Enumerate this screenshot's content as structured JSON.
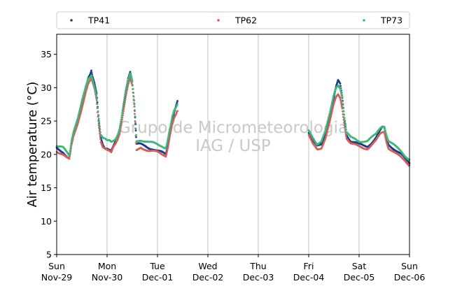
{
  "chart_data": {
    "type": "scatter",
    "ylabel": "Air temperature (°C)",
    "ylim": [
      5,
      38
    ],
    "yticks": [
      5,
      10,
      15,
      20,
      25,
      30,
      35
    ],
    "xlim_hours": [
      0,
      168
    ],
    "x_start": "2020-11-29T00:00",
    "xticks": [
      {
        "h": 0,
        "day": "Sun",
        "date": "Nov-29"
      },
      {
        "h": 24,
        "day": "Mon",
        "date": "Nov-30"
      },
      {
        "h": 48,
        "day": "Tue",
        "date": "Dec-01"
      },
      {
        "h": 72,
        "day": "Wed",
        "date": "Dec-02"
      },
      {
        "h": 96,
        "day": "Thu",
        "date": "Dec-03"
      },
      {
        "h": 120,
        "day": "Fri",
        "date": "Dec-04"
      },
      {
        "h": 144,
        "day": "Sat",
        "date": "Dec-05"
      },
      {
        "h": 168,
        "day": "Sun",
        "date": "Dec-06"
      }
    ],
    "grid": "vertical",
    "legend": "top",
    "watermark": [
      "Grupo de Micrometeorologia",
      "IAG / USP"
    ],
    "series": [
      {
        "name": "TP41",
        "color": "#1f3b8c",
        "segments": [
          {
            "points": [
              [
                0,
                21.0
              ],
              [
                3,
                20.4
              ],
              [
                5,
                19.6
              ],
              [
                6,
                19.3
              ],
              [
                7,
                21.5
              ],
              [
                8,
                23.0
              ],
              [
                10,
                25.0
              ],
              [
                12,
                27.5
              ],
              [
                14,
                30.0
              ],
              [
                15,
                31.5
              ],
              [
                16,
                32.0
              ],
              [
                16.5,
                32.5
              ],
              [
                17,
                31.6
              ],
              [
                18,
                30.5
              ],
              [
                19,
                29.0
              ],
              [
                20,
                25.0
              ],
              [
                21,
                22.5
              ],
              [
                22,
                21.5
              ],
              [
                23,
                21.0
              ],
              [
                24,
                21.0
              ],
              [
                25,
                20.8
              ],
              [
                26,
                20.6
              ],
              [
                27,
                21.2
              ],
              [
                28,
                21.8
              ],
              [
                29,
                22.5
              ],
              [
                30,
                23.5
              ],
              [
                31,
                25.5
              ],
              [
                32,
                27.5
              ],
              [
                33,
                29.5
              ],
              [
                34,
                31.5
              ],
              [
                35,
                32.5
              ],
              [
                36,
                31.0
              ],
              [
                37,
                27.5
              ],
              [
                38,
                21.5
              ],
              [
                40,
                21.5
              ],
              [
                42,
                21.3
              ],
              [
                44,
                21.0
              ],
              [
                46,
                20.8
              ],
              [
                48,
                20.5
              ],
              [
                50,
                20.3
              ],
              [
                52,
                20.0
              ],
              [
                53,
                21.5
              ],
              [
                54,
                23.5
              ],
              [
                55,
                25.0
              ],
              [
                56,
                26.5
              ],
              [
                57,
                27.5
              ],
              [
                57.5,
                28.0
              ]
            ]
          },
          {
            "points": [
              [
                120,
                23.3
              ],
              [
                122,
                22.0
              ],
              [
                124,
                21.2
              ],
              [
                126,
                21.5
              ],
              [
                128,
                23.0
              ],
              [
                130,
                25.5
              ],
              [
                132,
                28.5
              ],
              [
                133,
                30.0
              ],
              [
                134,
                31.0
              ],
              [
                135,
                30.5
              ],
              [
                136,
                28.5
              ],
              [
                137,
                25.5
              ],
              [
                138,
                23.0
              ],
              [
                140,
                22.0
              ],
              [
                142,
                21.8
              ],
              [
                144,
                21.5
              ],
              [
                146,
                21.3
              ],
              [
                148,
                21.2
              ],
              [
                150,
                21.8
              ],
              [
                152,
                22.5
              ],
              [
                153,
                23.0
              ],
              [
                154,
                23.5
              ],
              [
                155,
                24.0
              ],
              [
                156,
                24.0
              ],
              [
                157,
                22.5
              ],
              [
                158,
                21.5
              ],
              [
                160,
                21.0
              ],
              [
                162,
                20.5
              ],
              [
                164,
                20.0
              ],
              [
                166,
                19.3
              ],
              [
                168,
                18.7
              ]
            ]
          }
        ]
      },
      {
        "name": "TP62",
        "color": "#d45f5a",
        "segments": [
          {
            "points": [
              [
                0,
                20.5
              ],
              [
                3,
                20.0
              ],
              [
                5,
                19.4
              ],
              [
                6,
                19.2
              ],
              [
                7,
                21.2
              ],
              [
                8,
                22.7
              ],
              [
                10,
                24.7
              ],
              [
                12,
                27.0
              ],
              [
                14,
                29.5
              ],
              [
                15,
                30.5
              ],
              [
                16,
                31.0
              ],
              [
                16.5,
                31.2
              ],
              [
                17,
                30.8
              ],
              [
                18,
                29.8
              ],
              [
                19,
                28.2
              ],
              [
                20,
                24.5
              ],
              [
                21,
                22.0
              ],
              [
                22,
                21.2
              ],
              [
                23,
                21.0
              ],
              [
                24,
                20.7
              ],
              [
                25,
                20.5
              ],
              [
                26,
                20.2
              ],
              [
                27,
                21.0
              ],
              [
                28,
                21.5
              ],
              [
                29,
                22.2
              ],
              [
                30,
                23.2
              ],
              [
                31,
                25.0
              ],
              [
                32,
                27.0
              ],
              [
                33,
                29.0
              ],
              [
                34,
                30.5
              ],
              [
                35,
                31.5
              ],
              [
                36,
                30.2
              ],
              [
                37,
                27.0
              ],
              [
                38,
                20.5
              ],
              [
                40,
                21.0
              ],
              [
                42,
                20.8
              ],
              [
                44,
                20.6
              ],
              [
                46,
                20.5
              ],
              [
                48,
                20.3
              ],
              [
                50,
                20.0
              ],
              [
                52,
                19.8
              ],
              [
                53,
                21.2
              ],
              [
                54,
                23.0
              ],
              [
                55,
                24.5
              ],
              [
                56,
                25.5
              ],
              [
                57,
                26.0
              ],
              [
                57.5,
                26.5
              ]
            ]
          },
          {
            "points": [
              [
                120,
                22.8
              ],
              [
                122,
                21.5
              ],
              [
                124,
                20.8
              ],
              [
                126,
                21.0
              ],
              [
                128,
                22.5
              ],
              [
                130,
                24.8
              ],
              [
                132,
                27.5
              ],
              [
                133,
                28.5
              ],
              [
                134,
                29.0
              ],
              [
                135,
                28.5
              ],
              [
                136,
                27.0
              ],
              [
                137,
                24.5
              ],
              [
                138,
                22.5
              ],
              [
                140,
                21.6
              ],
              [
                142,
                21.4
              ],
              [
                144,
                21.2
              ],
              [
                146,
                21.0
              ],
              [
                148,
                20.9
              ],
              [
                150,
                21.4
              ],
              [
                152,
                22.0
              ],
              [
                153,
                22.5
              ],
              [
                154,
                23.0
              ],
              [
                155,
                23.3
              ],
              [
                156,
                23.4
              ],
              [
                157,
                22.0
              ],
              [
                158,
                21.0
              ],
              [
                160,
                20.5
              ],
              [
                162,
                20.0
              ],
              [
                164,
                19.5
              ],
              [
                166,
                19.0
              ],
              [
                168,
                18.4
              ]
            ]
          }
        ]
      },
      {
        "name": "TP73",
        "color": "#3cb878",
        "segments": [
          {
            "points": [
              [
                0,
                21.3
              ],
              [
                3,
                21.0
              ],
              [
                5,
                20.2
              ],
              [
                6,
                19.8
              ],
              [
                7,
                22.0
              ],
              [
                8,
                23.5
              ],
              [
                10,
                25.5
              ],
              [
                12,
                28.0
              ],
              [
                14,
                30.2
              ],
              [
                15,
                31.2
              ],
              [
                16,
                31.5
              ],
              [
                16.5,
                31.8
              ],
              [
                17,
                31.3
              ],
              [
                18,
                30.2
              ],
              [
                19,
                28.8
              ],
              [
                20,
                25.5
              ],
              [
                21,
                23.0
              ],
              [
                22,
                22.5
              ],
              [
                23,
                22.3
              ],
              [
                24,
                22.0
              ],
              [
                25,
                22.0
              ],
              [
                26,
                21.8
              ],
              [
                27,
                22.0
              ],
              [
                28,
                22.3
              ],
              [
                29,
                23.0
              ],
              [
                30,
                24.0
              ],
              [
                31,
                26.0
              ],
              [
                32,
                28.0
              ],
              [
                33,
                29.8
              ],
              [
                34,
                31.0
              ],
              [
                35,
                32.0
              ],
              [
                36,
                30.8
              ],
              [
                37,
                27.5
              ],
              [
                38,
                22.0
              ],
              [
                40,
                22.2
              ],
              [
                42,
                22.0
              ],
              [
                44,
                21.8
              ],
              [
                46,
                21.7
              ],
              [
                48,
                21.5
              ],
              [
                50,
                21.3
              ],
              [
                52,
                21.0
              ],
              [
                53,
                22.5
              ],
              [
                54,
                24.0
              ],
              [
                55,
                25.5
              ],
              [
                56,
                26.5
              ],
              [
                57,
                27.0
              ],
              [
                57.5,
                27.5
              ]
            ]
          },
          {
            "points": [
              [
                120,
                23.5
              ],
              [
                122,
                22.5
              ],
              [
                124,
                21.6
              ],
              [
                126,
                22.0
              ],
              [
                128,
                23.5
              ],
              [
                130,
                26.0
              ],
              [
                132,
                29.0
              ],
              [
                133,
                30.0
              ],
              [
                134,
                30.5
              ],
              [
                135,
                30.0
              ],
              [
                136,
                28.5
              ],
              [
                137,
                25.5
              ],
              [
                138,
                23.3
              ],
              [
                140,
                22.5
              ],
              [
                142,
                22.3
              ],
              [
                144,
                22.0
              ],
              [
                146,
                22.0
              ],
              [
                148,
                22.0
              ],
              [
                150,
                22.5
              ],
              [
                152,
                23.0
              ],
              [
                153,
                23.5
              ],
              [
                154,
                24.0
              ],
              [
                155,
                24.3
              ],
              [
                156,
                24.3
              ],
              [
                157,
                23.0
              ],
              [
                158,
                22.0
              ],
              [
                160,
                21.5
              ],
              [
                162,
                21.0
              ],
              [
                164,
                20.5
              ],
              [
                166,
                19.8
              ],
              [
                168,
                19.2
              ]
            ]
          }
        ]
      }
    ]
  }
}
